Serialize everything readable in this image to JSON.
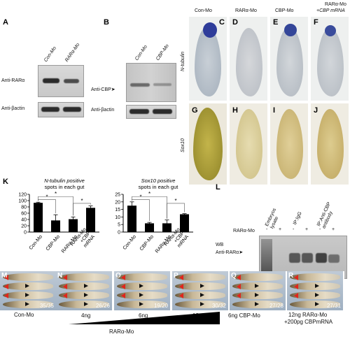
{
  "panels": {
    "A": {
      "label": "A",
      "lanes": [
        "Con-Mo",
        "RARα-Mo"
      ],
      "rows": [
        "Anti-RARα",
        "Anti-βactin"
      ]
    },
    "B": {
      "label": "B",
      "lanes": [
        "Con-Mo",
        "CBP-Mo"
      ],
      "rows": [
        "Anti-CBP",
        "Anti-βactin"
      ]
    },
    "C": {
      "label": "C",
      "title": "Con-Mo"
    },
    "D": {
      "label": "D",
      "title": "RARα-Mo"
    },
    "E": {
      "label": "E",
      "title": "CBP-Mo"
    },
    "F": {
      "label": "F",
      "title": "RARα-Mo",
      "title2": "+CBP mRNA"
    },
    "G": {
      "label": "G"
    },
    "H": {
      "label": "H"
    },
    "I": {
      "label": "I"
    },
    "J": {
      "label": "J"
    },
    "row_labels": {
      "top": "N-tubulin",
      "bottom": "Sox10"
    },
    "K": {
      "label": "K"
    },
    "L": {
      "label": "L",
      "headers": [
        "Embryos lysate",
        "IP:IgG",
        "IP:Anti-CBP antibody"
      ],
      "treatment": "RARα-Mo",
      "signs": [
        "-",
        "+",
        "-",
        "+",
        "-",
        "+"
      ],
      "lane_numbers": [
        "1",
        "2",
        "3",
        "4",
        "5",
        "6"
      ],
      "wb": "WB",
      "wb_target": "Anti-RARα"
    },
    "embryos": [
      {
        "label": "M",
        "count": "35/35",
        "caption": "Con-Mo"
      },
      {
        "label": "N",
        "count": "26/26",
        "caption": "4ng"
      },
      {
        "label": "O",
        "count": "19/20",
        "caption": "6ng"
      },
      {
        "label": "P",
        "count": "30/32",
        "caption": "12ng"
      },
      {
        "label": "Q",
        "count": "27/28",
        "caption": "6ng CBP-Mo"
      },
      {
        "label": "R",
        "count": "27/31",
        "caption": "12ng RARα-Mo",
        "caption2": "+200pg CBPmRNA"
      }
    ],
    "dose_label": "RARα-Mo"
  },
  "chart_data": [
    {
      "type": "bar",
      "title": "N-tubulin positive spots in each gut",
      "categories": [
        "Con-Mo",
        "CBP-Mo",
        "RARα-Mo",
        "RARα-Mo +CBP mRNA"
      ],
      "values": [
        93,
        37,
        41,
        77
      ],
      "errors": [
        2,
        18,
        7,
        6
      ],
      "ylim": [
        0,
        120
      ],
      "yticks": [
        "0",
        "20",
        "40",
        "60",
        "80",
        "100",
        "120"
      ],
      "significance": [
        "*",
        "*",
        "*"
      ]
    },
    {
      "type": "bar",
      "title": "Sox10 positive spots in each gut",
      "categories": [
        "Con-Mo",
        "CBP-Mo",
        "RARα-Mo",
        "RARα-Mo +CBP mRNA"
      ],
      "values": [
        17.5,
        5.8,
        5.8,
        11.8
      ],
      "errors": [
        2.5,
        0.6,
        2.2,
        0.4
      ],
      "ylim": [
        0,
        25
      ],
      "yticks": [
        "0",
        "5",
        "10",
        "15",
        "20",
        "25"
      ],
      "significance": [
        "*",
        "*",
        "*"
      ]
    }
  ]
}
